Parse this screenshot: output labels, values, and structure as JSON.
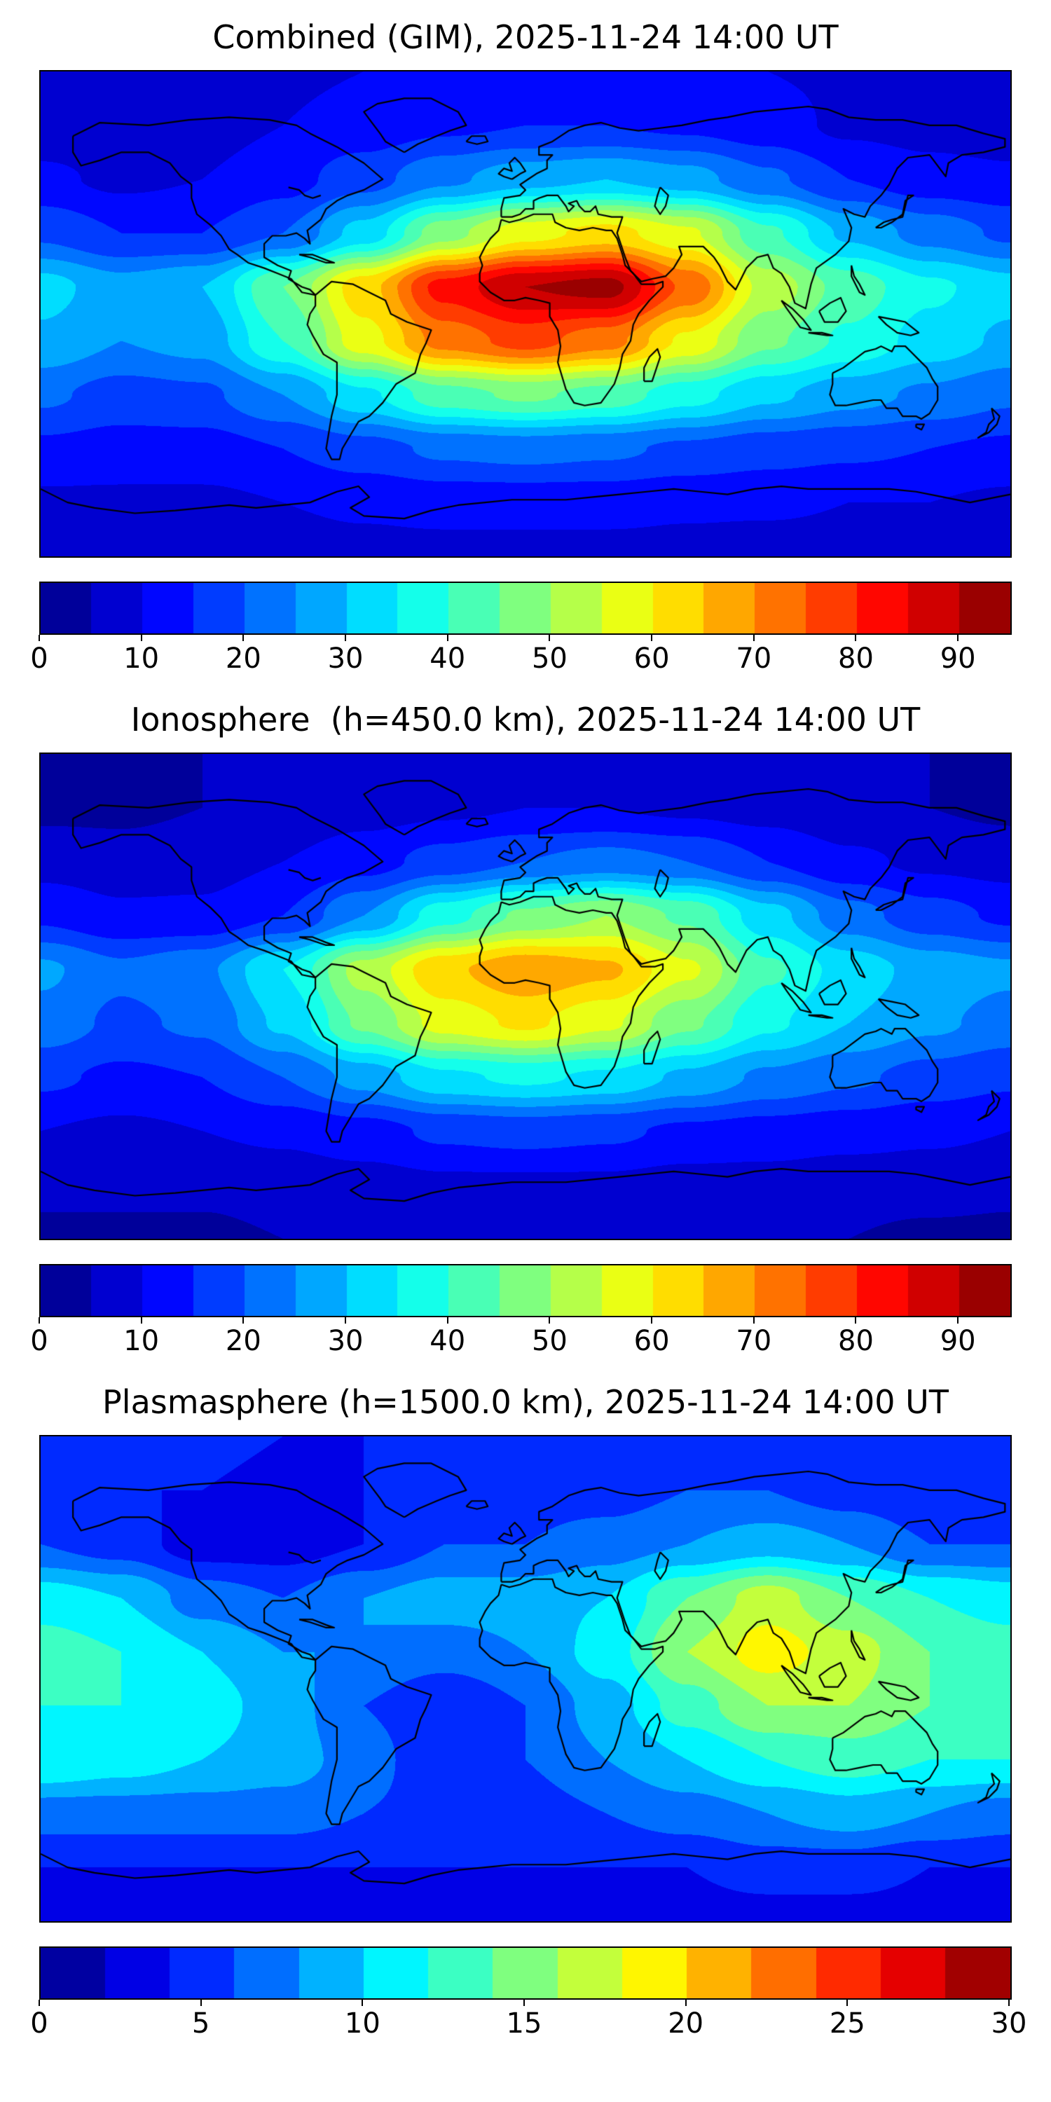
{
  "figure": {
    "background": "#ffffff",
    "text_color": "#000000",
    "coastline_color": "#000000"
  },
  "chart_data": [
    {
      "type": "heatmap",
      "title": "Combined (GIM), 2025-11-24 14:00 UT",
      "colormap": "jet",
      "projection": "equirectangular",
      "legend_position": "bottom-colorbar",
      "grid": false,
      "levels": {
        "min": 0,
        "max": 95,
        "step": 5
      },
      "colorbar_ticks": [
        0,
        10,
        20,
        30,
        40,
        50,
        60,
        70,
        80,
        90
      ],
      "lon": [
        -180,
        -150,
        -120,
        -90,
        -60,
        -30,
        0,
        30,
        60,
        90,
        120,
        150,
        180
      ],
      "lat": [
        90,
        70,
        50,
        30,
        10,
        -10,
        -30,
        -50,
        -70,
        -90
      ],
      "values": [
        [
          9,
          9,
          9,
          9,
          10,
          11,
          12,
          12,
          11,
          10,
          9,
          9,
          9
        ],
        [
          7,
          7,
          8,
          10,
          12,
          14,
          15,
          15,
          14,
          12,
          9,
          8,
          7
        ],
        [
          11,
          9,
          10,
          13,
          18,
          24,
          28,
          30,
          27,
          21,
          15,
          12,
          11
        ],
        [
          19,
          15,
          15,
          20,
          32,
          48,
          58,
          62,
          56,
          41,
          29,
          23,
          19
        ],
        [
          32,
          27,
          30,
          45,
          63,
          82,
          90,
          92,
          74,
          53,
          43,
          36,
          32
        ],
        [
          29,
          25,
          27,
          40,
          58,
          72,
          77,
          72,
          59,
          46,
          39,
          33,
          29
        ],
        [
          21,
          18,
          19,
          25,
          34,
          43,
          46,
          43,
          37,
          31,
          27,
          24,
          21
        ],
        [
          14,
          13,
          13,
          15,
          18,
          21,
          22,
          21,
          19,
          17,
          16,
          15,
          14
        ],
        [
          9,
          9,
          9,
          10,
          11,
          12,
          12,
          12,
          11,
          11,
          10,
          10,
          9
        ],
        [
          7,
          7,
          7,
          7,
          8,
          8,
          8,
          8,
          8,
          7,
          7,
          7,
          7
        ]
      ]
    },
    {
      "type": "heatmap",
      "title": "Ionosphere  (h=450.0 km), 2025-11-24 14:00 UT",
      "colormap": "jet",
      "projection": "equirectangular",
      "legend_position": "bottom-colorbar",
      "grid": false,
      "levels": {
        "min": 0,
        "max": 95,
        "step": 5
      },
      "colorbar_ticks": [
        0,
        10,
        20,
        30,
        40,
        50,
        60,
        70,
        80,
        90
      ],
      "lon": [
        -180,
        -150,
        -120,
        -90,
        -60,
        -30,
        0,
        30,
        60,
        90,
        120,
        150,
        180
      ],
      "lat": [
        90,
        70,
        50,
        30,
        10,
        -10,
        -30,
        -50,
        -70,
        -90
      ],
      "values": [
        [
          5,
          5,
          5,
          5,
          6,
          7,
          7,
          7,
          7,
          6,
          5,
          5,
          5
        ],
        [
          4,
          4,
          5,
          6,
          8,
          9,
          10,
          10,
          9,
          8,
          6,
          5,
          4
        ],
        [
          8,
          7,
          8,
          10,
          13,
          17,
          20,
          22,
          20,
          15,
          11,
          9,
          8
        ],
        [
          14,
          11,
          11,
          15,
          25,
          38,
          46,
          50,
          44,
          32,
          22,
          17,
          14
        ],
        [
          26,
          21,
          24,
          35,
          52,
          64,
          69,
          66,
          56,
          41,
          33,
          28,
          26
        ],
        [
          23,
          19,
          21,
          31,
          46,
          57,
          61,
          56,
          46,
          36,
          30,
          26,
          23
        ],
        [
          16,
          14,
          15,
          20,
          27,
          34,
          36,
          34,
          29,
          24,
          21,
          18,
          16
        ],
        [
          10,
          9,
          10,
          11,
          13,
          16,
          17,
          16,
          14,
          13,
          12,
          11,
          10
        ],
        [
          6,
          6,
          6,
          7,
          8,
          9,
          9,
          9,
          8,
          8,
          7,
          7,
          6
        ],
        [
          4,
          4,
          4,
          5,
          5,
          6,
          6,
          6,
          5,
          5,
          5,
          4,
          4
        ]
      ]
    },
    {
      "type": "heatmap",
      "title": "Plasmasphere (h=1500.0 km), 2025-11-24 14:00 UT",
      "colormap": "jet",
      "projection": "equirectangular",
      "legend_position": "bottom-colorbar",
      "grid": false,
      "levels": {
        "min": 0,
        "max": 30,
        "step": 2
      },
      "colorbar_ticks": [
        0,
        5,
        10,
        15,
        20,
        25,
        30
      ],
      "lon": [
        -180,
        -150,
        -120,
        -90,
        -60,
        -30,
        0,
        30,
        60,
        90,
        120,
        150,
        180
      ],
      "lat": [
        90,
        70,
        50,
        30,
        10,
        -10,
        -30,
        -50,
        -70,
        -90
      ],
      "values": [
        [
          5,
          5,
          5,
          4,
          4,
          5,
          5,
          5,
          5,
          5,
          5,
          5,
          5
        ],
        [
          4,
          4,
          4,
          3,
          4,
          5,
          5,
          5,
          6,
          6,
          5,
          4,
          4
        ],
        [
          6,
          5,
          3,
          3,
          4,
          6,
          6,
          7,
          8,
          9,
          8,
          6,
          6
        ],
        [
          11,
          10,
          7,
          6,
          8,
          9,
          9,
          10,
          14,
          17,
          14,
          12,
          11
        ],
        [
          13,
          12,
          10,
          8,
          8,
          7,
          8,
          11,
          16,
          19,
          17,
          14,
          13
        ],
        [
          12,
          12,
          11,
          9,
          6,
          4,
          6,
          9,
          13,
          16,
          16,
          14,
          12
        ],
        [
          12,
          11,
          10,
          9,
          7,
          4,
          6,
          8,
          10,
          12,
          13,
          12,
          12
        ],
        [
          7,
          7,
          7,
          7,
          6,
          5,
          5,
          6,
          7,
          8,
          9,
          8,
          7
        ],
        [
          4,
          4,
          4,
          4,
          4,
          4,
          4,
          4,
          4,
          5,
          5,
          4,
          4
        ],
        [
          3,
          3,
          3,
          3,
          3,
          3,
          3,
          3,
          3,
          3,
          3,
          3,
          3
        ]
      ]
    }
  ]
}
